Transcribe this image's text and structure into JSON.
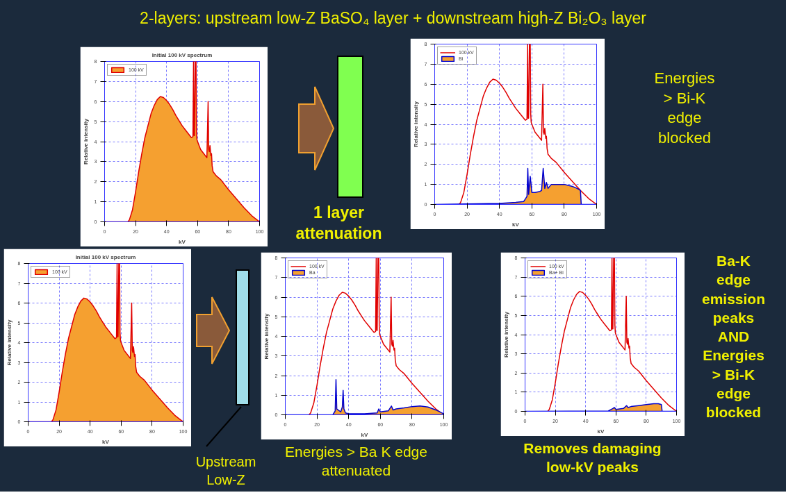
{
  "chart_data": [
    {
      "type": "other",
      "title": "2-layers: upstream low-Z  BaSO₄ layer + downstream high-Z Bi₂O₃ layer",
      "annotations": [
        "1 layer attenuation",
        "Energies > Bi-K edge blocked",
        "Upstream Low-Z",
        "Energies > Ba K edge attenuated",
        "Removes damaging low-kV peaks",
        "Ba-K edge emission peaks AND Energies > Bi-K edge blocked"
      ]
    },
    {
      "type": "line",
      "title": "Initial 100 kV spectrum",
      "xlabel": "kV",
      "ylabel": "Relative intensity",
      "xlim": [
        0,
        100
      ],
      "ylim": [
        0,
        8
      ],
      "xticks": [
        0,
        20,
        40,
        60,
        80,
        100
      ],
      "yticks": [
        0,
        1,
        2,
        3,
        4,
        5,
        6,
        7,
        8
      ],
      "grid": true,
      "legend": "top left",
      "x": [
        0,
        15,
        16,
        18,
        20,
        22,
        24,
        26,
        28,
        30,
        32,
        34,
        36,
        38,
        40,
        42,
        44,
        46,
        48,
        50,
        52,
        54,
        56,
        57,
        57.4,
        57.7,
        58,
        58.5,
        59,
        59.3,
        59.6,
        60,
        61,
        62,
        64,
        66,
        66.8,
        67.2,
        67.6,
        68,
        68.6,
        69,
        69.4,
        70,
        72,
        75,
        80,
        85,
        90,
        95,
        100
      ],
      "series": [
        {
          "type": "area",
          "name": "100 kV",
          "color": "#e00000",
          "values": [
            0,
            0,
            0.1,
            0.6,
            1.5,
            2.5,
            3.4,
            4.2,
            4.8,
            5.4,
            5.8,
            6.1,
            6.25,
            6.2,
            6.05,
            5.85,
            5.6,
            5.3,
            5.05,
            4.8,
            4.6,
            4.4,
            4.2,
            4.25,
            8,
            4.3,
            4.3,
            8,
            8,
            4.5,
            4.1,
            4.0,
            3.8,
            3.6,
            3.4,
            3.2,
            6.0,
            3.6,
            3.5,
            3.8,
            3.3,
            3.4,
            2.8,
            2.5,
            2.3,
            2.1,
            1.6,
            1.15,
            0.7,
            0.3,
            0
          ]
        }
      ]
    },
    {
      "type": "line",
      "xlabel": "kV",
      "ylabel": "Relative intensity",
      "xlim": [
        0,
        100
      ],
      "ylim": [
        0,
        8
      ],
      "xticks": [
        0,
        20,
        40,
        60,
        80,
        100
      ],
      "yticks": [
        0,
        1,
        2,
        3,
        4,
        5,
        6,
        7,
        8
      ],
      "grid": true,
      "legend": "top left",
      "x": [
        15,
        16,
        18,
        20,
        22,
        24,
        26,
        28,
        30,
        32,
        34,
        36,
        38,
        40,
        42,
        44,
        46,
        48,
        50,
        52,
        54,
        56,
        57,
        57.4,
        57.7,
        58,
        58.5,
        59,
        59.3,
        59.6,
        60,
        61,
        62,
        64,
        66,
        66.8,
        67.2,
        67.6,
        68,
        68.6,
        69,
        69.4,
        70,
        72,
        75,
        80,
        85,
        90,
        95,
        100
      ],
      "series": [
        {
          "type": "line",
          "name": "100 kV",
          "color": "#e00000",
          "values": [
            0,
            0.1,
            0.6,
            1.5,
            2.5,
            3.4,
            4.2,
            4.8,
            5.4,
            5.8,
            6.1,
            6.25,
            6.2,
            6.05,
            5.85,
            5.6,
            5.3,
            5.05,
            4.8,
            4.6,
            4.4,
            4.2,
            4.25,
            8,
            4.3,
            4.3,
            8,
            8,
            4.5,
            4.1,
            4.0,
            3.8,
            3.6,
            3.4,
            3.2,
            6.0,
            3.6,
            3.5,
            3.8,
            3.3,
            3.4,
            2.8,
            2.5,
            2.3,
            2.1,
            1.6,
            1.15,
            0.7,
            0.3,
            0
          ]
        },
        {
          "type": "area",
          "name": "Bi",
          "color": "#0000d0",
          "x": [
            0,
            40,
            50,
            55,
            57,
            57.5,
            58,
            59,
            60,
            62,
            65,
            66,
            67,
            68,
            69,
            70,
            72,
            75,
            80,
            85,
            88,
            90,
            90.5,
            100
          ],
          "values": [
            0,
            0.05,
            0.1,
            0.15,
            0.4,
            1.8,
            0.5,
            1.4,
            0.6,
            0.6,
            0.65,
            0.7,
            1.8,
            0.8,
            1.1,
            0.8,
            1.0,
            1.0,
            1.0,
            0.9,
            0.8,
            0.7,
            0,
            0
          ]
        }
      ]
    },
    {
      "type": "line",
      "title": "Initial 100 kV spectrum",
      "xlabel": "kV",
      "ylabel": "Relative intensity",
      "xlim": [
        0,
        100
      ],
      "ylim": [
        0,
        8
      ],
      "xticks": [
        0,
        20,
        40,
        60,
        80,
        100
      ],
      "yticks": [
        0,
        1,
        2,
        3,
        4,
        5,
        6,
        7,
        8
      ],
      "grid": true,
      "legend": "top left",
      "x": [
        0,
        15,
        16,
        18,
        20,
        22,
        24,
        26,
        28,
        30,
        32,
        34,
        36,
        38,
        40,
        42,
        44,
        46,
        48,
        50,
        52,
        54,
        56,
        57,
        57.4,
        57.7,
        58,
        58.5,
        59,
        59.3,
        59.6,
        60,
        61,
        62,
        64,
        66,
        66.8,
        67.2,
        67.6,
        68,
        68.6,
        69,
        69.4,
        70,
        72,
        75,
        80,
        85,
        90,
        95,
        100
      ],
      "series": [
        {
          "type": "area",
          "name": "100 kV",
          "color": "#e00000",
          "values": [
            0,
            0,
            0.1,
            0.6,
            1.5,
            2.5,
            3.4,
            4.2,
            4.8,
            5.4,
            5.8,
            6.1,
            6.25,
            6.2,
            6.05,
            5.85,
            5.6,
            5.3,
            5.05,
            4.8,
            4.6,
            4.4,
            4.2,
            4.25,
            8,
            4.3,
            4.3,
            8,
            8,
            4.5,
            4.1,
            4.0,
            3.8,
            3.6,
            3.4,
            3.2,
            6.0,
            3.6,
            3.5,
            3.8,
            3.3,
            3.4,
            2.8,
            2.5,
            2.3,
            2.1,
            1.6,
            1.15,
            0.7,
            0.3,
            0
          ]
        }
      ]
    },
    {
      "type": "line",
      "xlabel": "kV",
      "ylabel": "Relative intensity",
      "xlim": [
        0,
        100
      ],
      "ylim": [
        0,
        8
      ],
      "xticks": [
        0,
        20,
        40,
        60,
        80,
        100
      ],
      "yticks": [
        0,
        1,
        2,
        3,
        4,
        5,
        6,
        7,
        8
      ],
      "grid": true,
      "legend": "top left",
      "x": [
        15,
        16,
        18,
        20,
        22,
        24,
        26,
        28,
        30,
        32,
        34,
        36,
        38,
        40,
        42,
        44,
        46,
        48,
        50,
        52,
        54,
        56,
        57,
        57.4,
        57.7,
        58,
        58.5,
        59,
        59.3,
        59.6,
        60,
        61,
        62,
        64,
        66,
        66.8,
        67.2,
        67.6,
        68,
        68.6,
        69,
        69.4,
        70,
        72,
        75,
        80,
        85,
        90,
        95,
        100
      ],
      "series": [
        {
          "type": "line",
          "name": "100 kV",
          "color": "#e00000",
          "values": [
            0,
            0.1,
            0.6,
            1.5,
            2.5,
            3.4,
            4.2,
            4.8,
            5.4,
            5.8,
            6.1,
            6.25,
            6.2,
            6.05,
            5.85,
            5.6,
            5.3,
            5.05,
            4.8,
            4.6,
            4.4,
            4.2,
            4.25,
            8,
            4.3,
            4.3,
            8,
            8,
            4.5,
            4.1,
            4.0,
            3.8,
            3.6,
            3.4,
            3.2,
            6.0,
            3.6,
            3.5,
            3.8,
            3.3,
            3.4,
            2.8,
            2.5,
            2.3,
            2.1,
            1.6,
            1.15,
            0.7,
            0.3,
            0
          ]
        },
        {
          "type": "area",
          "name": "Ba",
          "color": "#0000d0",
          "x": [
            0,
            30,
            31.5,
            32,
            32.5,
            35,
            36,
            36.5,
            37,
            38,
            40,
            50,
            58,
            59,
            60,
            65,
            67,
            68,
            70,
            75,
            80,
            85,
            90,
            95,
            100
          ],
          "values": [
            0,
            0,
            0.2,
            1.8,
            0.3,
            0.15,
            0.4,
            1.25,
            0.3,
            0.1,
            0.05,
            0.05,
            0.1,
            0.3,
            0.15,
            0.2,
            0.45,
            0.25,
            0.3,
            0.35,
            0.42,
            0.45,
            0.4,
            0.25,
            0.05
          ]
        }
      ]
    },
    {
      "type": "line",
      "xlabel": "kV",
      "ylabel": "Relative intensity",
      "xlim": [
        0,
        100
      ],
      "ylim": [
        0,
        8
      ],
      "xticks": [
        0,
        20,
        40,
        60,
        80,
        100
      ],
      "yticks": [
        0,
        1,
        2,
        3,
        4,
        5,
        6,
        7,
        8
      ],
      "grid": true,
      "legend": "top left",
      "x": [
        15,
        16,
        18,
        20,
        22,
        24,
        26,
        28,
        30,
        32,
        34,
        36,
        38,
        40,
        42,
        44,
        46,
        48,
        50,
        52,
        54,
        56,
        57,
        57.4,
        57.7,
        58,
        58.5,
        59,
        59.3,
        59.6,
        60,
        61,
        62,
        64,
        66,
        66.8,
        67.2,
        67.6,
        68,
        68.6,
        69,
        69.4,
        70,
        72,
        75,
        80,
        85,
        90,
        95,
        100
      ],
      "series": [
        {
          "type": "line",
          "name": "100 kV",
          "color": "#e00000",
          "values": [
            0,
            0.1,
            0.6,
            1.5,
            2.5,
            3.4,
            4.2,
            4.8,
            5.4,
            5.8,
            6.1,
            6.25,
            6.2,
            6.05,
            5.85,
            5.6,
            5.3,
            5.05,
            4.8,
            4.6,
            4.4,
            4.2,
            4.25,
            8,
            4.3,
            4.3,
            8,
            8,
            4.5,
            4.1,
            4.0,
            3.8,
            3.6,
            3.4,
            3.2,
            6.0,
            3.6,
            3.5,
            3.8,
            3.3,
            3.4,
            2.8,
            2.5,
            2.3,
            2.1,
            1.6,
            1.15,
            0.7,
            0.3,
            0
          ]
        },
        {
          "type": "area",
          "name": "Ba+ Bi",
          "color": "#0000d0",
          "x": [
            0,
            55,
            58,
            59,
            60,
            65,
            67,
            68,
            70,
            75,
            80,
            85,
            88,
            90,
            90.5,
            100
          ],
          "values": [
            0,
            0.02,
            0.15,
            0.2,
            0.1,
            0.15,
            0.3,
            0.2,
            0.25,
            0.3,
            0.35,
            0.4,
            0.4,
            0.35,
            0,
            0
          ]
        }
      ]
    }
  ]
}
